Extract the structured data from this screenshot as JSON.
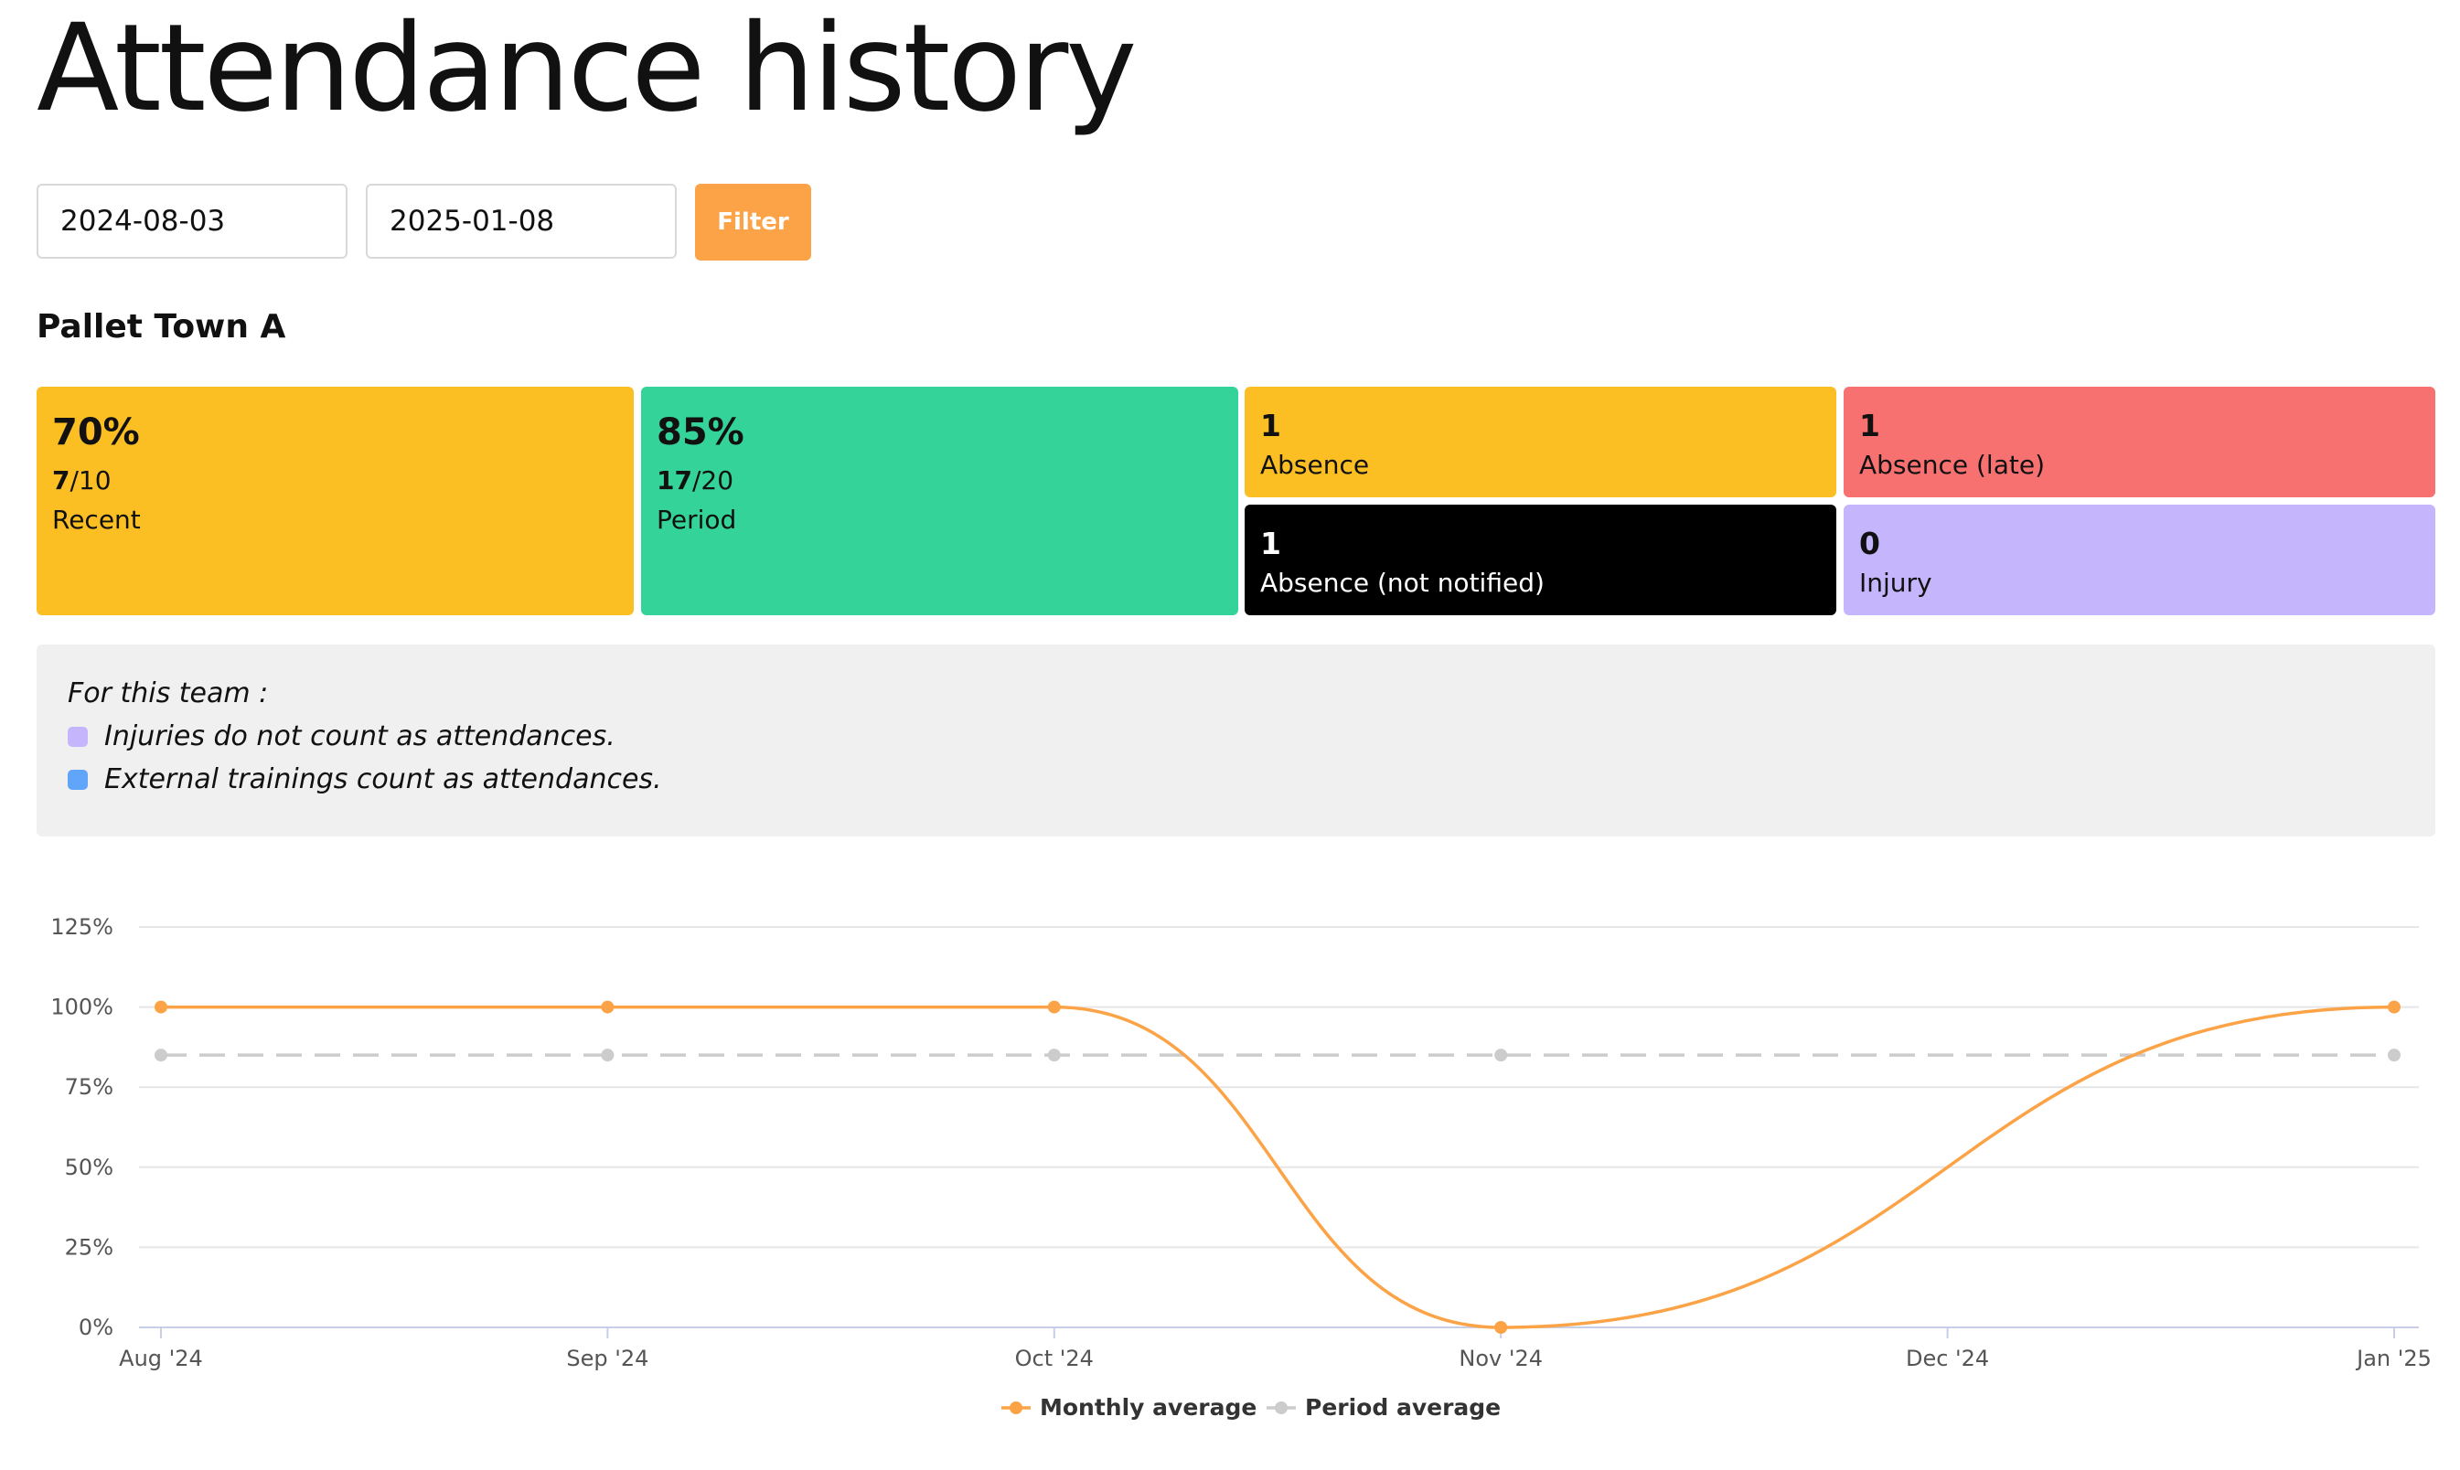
{
  "page": {
    "title": "Attendance history"
  },
  "filter": {
    "from": "2024-08-03",
    "to": "2025-01-08",
    "button_label": "Filter"
  },
  "team": {
    "name": "Pallet Town A"
  },
  "tiles": {
    "recent": {
      "percent": "70%",
      "count": "7",
      "total": "/10",
      "label": "Recent",
      "color": "#fbbf24"
    },
    "period": {
      "percent": "85%",
      "count": "17",
      "total": "/20",
      "label": "Period",
      "color": "#34d399"
    },
    "absence": {
      "count": "1",
      "label": "Absence",
      "color": "#fbbf24"
    },
    "absence_late": {
      "count": "1",
      "label": "Absence (late)",
      "color": "#f87171"
    },
    "absence_not_notified": {
      "count": "1",
      "label": "Absence (not notified)",
      "color": "#000000"
    },
    "injury": {
      "count": "0",
      "label": "Injury",
      "color": "#c4b5fd"
    }
  },
  "notice": {
    "intro": "For this team :",
    "rules": [
      {
        "text": "Injuries do not count as attendances.",
        "color": "#c4b5fd"
      },
      {
        "text": "External trainings count as attendances.",
        "color": "#60a5fa"
      }
    ]
  },
  "chart_data": {
    "type": "line",
    "categories": [
      "Aug '24",
      "Sep '24",
      "Oct '24",
      "Nov '24",
      "Dec '24",
      "Jan '25"
    ],
    "yticks": [
      "0%",
      "25%",
      "50%",
      "75%",
      "100%",
      "125%"
    ],
    "ylim": [
      0,
      125
    ],
    "grid": true,
    "legend_position": "bottom-center",
    "series": [
      {
        "name": "Monthly average",
        "values": [
          100,
          100,
          100,
          0,
          null,
          100
        ],
        "color": "#fba346",
        "style": "solid-smooth"
      },
      {
        "name": "Period average",
        "values": [
          85,
          85,
          85,
          85,
          null,
          85
        ],
        "color": "#cccccc",
        "style": "dashed"
      }
    ]
  }
}
